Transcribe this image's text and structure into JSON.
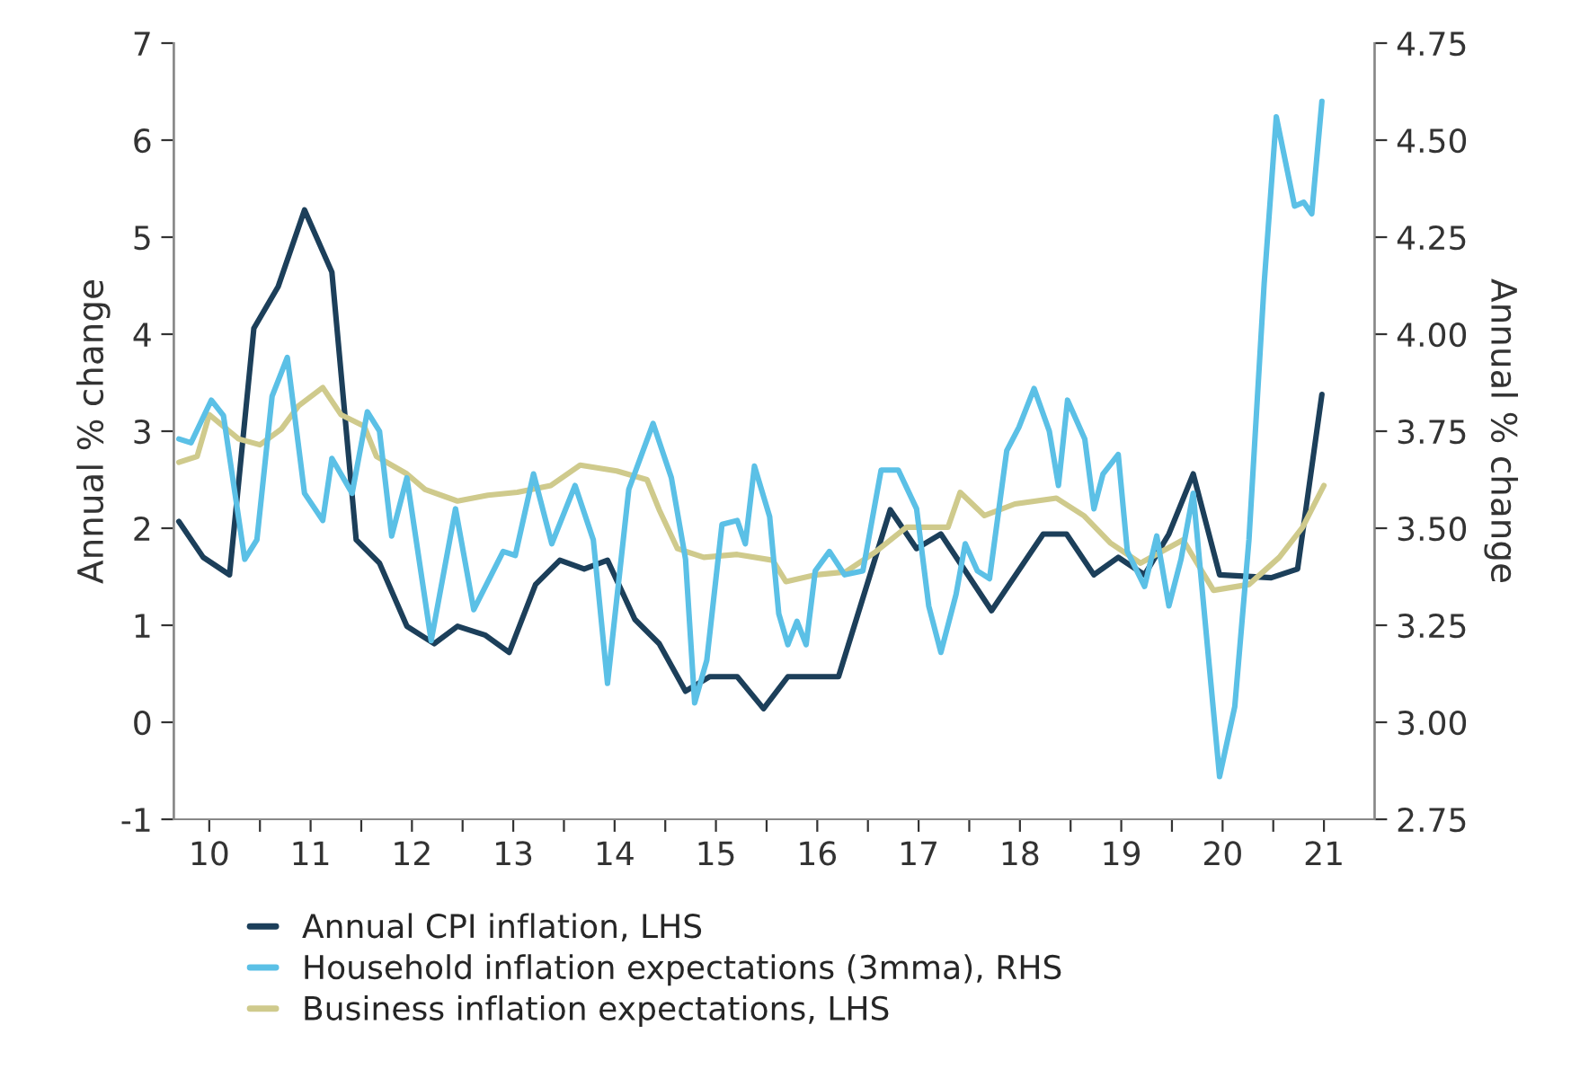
{
  "chart_data": {
    "type": "line",
    "ylabel": "Annual % change",
    "y2label": "Annual % change",
    "xlim": [
      10.15,
      22.0
    ],
    "xticks": [
      {
        "value": 10.5,
        "label": "10"
      },
      {
        "value": 11.5,
        "label": "11"
      },
      {
        "value": 12.5,
        "label": "12"
      },
      {
        "value": 13.5,
        "label": "13"
      },
      {
        "value": 14.5,
        "label": "14"
      },
      {
        "value": 15.5,
        "label": "15"
      },
      {
        "value": 16.5,
        "label": "16"
      },
      {
        "value": 17.5,
        "label": "17"
      },
      {
        "value": 18.5,
        "label": "18"
      },
      {
        "value": 19.5,
        "label": "19"
      },
      {
        "value": 20.5,
        "label": "20"
      },
      {
        "value": 21.5,
        "label": "21"
      },
      {
        "value": 11,
        "label": null
      },
      {
        "value": 12,
        "label": null
      },
      {
        "value": 13,
        "label": null
      },
      {
        "value": 14,
        "label": null
      },
      {
        "value": 15,
        "label": null
      },
      {
        "value": 16,
        "label": null
      },
      {
        "value": 17,
        "label": null
      },
      {
        "value": 18,
        "label": null
      },
      {
        "value": 19,
        "label": null
      },
      {
        "value": 20,
        "label": null
      },
      {
        "value": 21,
        "label": null
      }
    ],
    "ylim": [
      -1,
      7
    ],
    "yticks": [
      -1,
      0,
      1,
      2,
      3,
      4,
      5,
      6,
      7
    ],
    "y2lim": [
      2.75,
      4.75
    ],
    "y2ticks": [
      {
        "value": 2.75,
        "label": "2.75"
      },
      {
        "value": 3.0,
        "label": "3.00"
      },
      {
        "value": 3.25,
        "label": "3.25"
      },
      {
        "value": 3.5,
        "label": "3.50"
      },
      {
        "value": 3.75,
        "label": "3.75"
      },
      {
        "value": 4.0,
        "label": "4.00"
      },
      {
        "value": 4.25,
        "label": "4.25"
      },
      {
        "value": 4.5,
        "label": "4.50"
      },
      {
        "value": 4.75,
        "label": "4.75"
      }
    ],
    "grid": false,
    "legend": "bottom",
    "line_style": "solid",
    "series": [
      {
        "name": "Annual CPI inflation, LHS",
        "color": "#1c3f5a",
        "x": [
          10.2,
          10.44,
          10.7,
          10.94,
          11.18,
          11.44,
          11.71,
          11.95,
          12.18,
          12.45,
          12.72,
          12.95,
          13.22,
          13.46,
          13.72,
          13.96,
          14.2,
          14.43,
          14.7,
          14.94,
          15.2,
          15.44,
          15.71,
          15.97,
          16.21,
          16.71,
          17.22,
          17.48,
          17.72,
          18.22,
          18.73,
          18.96,
          19.23,
          19.47,
          19.73,
          19.97,
          20.21,
          20.47,
          20.98,
          21.24,
          21.48
        ],
        "values": [
          2.07,
          1.7,
          1.52,
          4.06,
          4.49,
          5.28,
          4.64,
          1.88,
          1.64,
          0.99,
          0.81,
          0.99,
          0.9,
          0.72,
          1.42,
          1.67,
          1.58,
          1.67,
          1.06,
          0.81,
          0.32,
          0.47,
          0.47,
          0.14,
          0.47,
          0.47,
          2.19,
          1.79,
          1.94,
          1.15,
          1.94,
          1.94,
          1.52,
          1.7,
          1.52,
          1.94,
          2.56,
          1.52,
          1.49,
          1.58,
          3.38
        ]
      },
      {
        "name": "Household inflation expectations (3mma), RHS",
        "color": "#5bc0e6",
        "axis": "y2",
        "x": [
          10.2,
          10.32,
          10.52,
          10.64,
          10.85,
          10.97,
          11.12,
          11.27,
          11.44,
          11.62,
          11.71,
          11.91,
          12.06,
          12.18,
          12.3,
          12.45,
          12.69,
          12.93,
          13.11,
          13.4,
          13.52,
          13.7,
          13.88,
          14.11,
          14.29,
          14.43,
          14.64,
          14.88,
          15.06,
          15.2,
          15.29,
          15.41,
          15.56,
          15.71,
          15.79,
          15.88,
          16.03,
          16.12,
          16.21,
          16.3,
          16.39,
          16.48,
          16.62,
          16.77,
          16.95,
          17.13,
          17.3,
          17.48,
          17.6,
          17.72,
          17.87,
          17.96,
          18.08,
          18.2,
          18.37,
          18.49,
          18.64,
          18.79,
          18.88,
          18.97,
          19.14,
          19.23,
          19.32,
          19.47,
          19.56,
          19.73,
          19.85,
          19.97,
          20.09,
          20.21,
          20.47,
          20.62,
          20.76,
          20.91,
          21.03,
          21.21,
          21.3,
          21.38,
          21.48
        ],
        "values": [
          3.73,
          3.72,
          3.83,
          3.79,
          3.42,
          3.47,
          3.84,
          3.94,
          3.59,
          3.52,
          3.68,
          3.59,
          3.8,
          3.75,
          3.48,
          3.63,
          3.21,
          3.55,
          3.29,
          3.44,
          3.43,
          3.64,
          3.46,
          3.61,
          3.47,
          3.1,
          3.6,
          3.77,
          3.63,
          3.42,
          3.05,
          3.16,
          3.51,
          3.52,
          3.46,
          3.66,
          3.53,
          3.28,
          3.2,
          3.26,
          3.2,
          3.39,
          3.44,
          3.38,
          3.39,
          3.65,
          3.65,
          3.55,
          3.3,
          3.18,
          3.33,
          3.46,
          3.39,
          3.37,
          3.7,
          3.76,
          3.86,
          3.75,
          3.61,
          3.83,
          3.73,
          3.55,
          3.64,
          3.69,
          3.44,
          3.35,
          3.48,
          3.3,
          3.42,
          3.59,
          2.86,
          3.04,
          3.47,
          4.13,
          4.56,
          4.33,
          4.34,
          4.31,
          4.6
        ]
      },
      {
        "name": "Business inflation expectations, LHS",
        "color": "#cfca8c",
        "x": [
          10.2,
          10.38,
          10.5,
          10.79,
          11.0,
          11.21,
          11.38,
          11.62,
          11.8,
          12.03,
          12.15,
          12.45,
          12.63,
          12.95,
          13.25,
          13.54,
          13.87,
          14.16,
          14.52,
          14.82,
          14.94,
          15.12,
          15.38,
          15.71,
          16.06,
          16.19,
          16.49,
          16.78,
          17.08,
          17.38,
          17.79,
          17.91,
          18.15,
          18.45,
          18.86,
          19.13,
          19.39,
          19.69,
          20.11,
          20.41,
          20.76,
          21.06,
          21.29,
          21.5
        ],
        "values": [
          2.68,
          2.74,
          3.17,
          2.92,
          2.86,
          3.02,
          3.26,
          3.45,
          3.17,
          3.05,
          2.74,
          2.56,
          2.4,
          2.28,
          2.34,
          2.37,
          2.44,
          2.65,
          2.59,
          2.5,
          2.19,
          1.79,
          1.7,
          1.73,
          1.67,
          1.45,
          1.52,
          1.55,
          1.76,
          2.01,
          2.01,
          2.37,
          2.13,
          2.25,
          2.31,
          2.13,
          1.85,
          1.64,
          1.88,
          1.36,
          1.42,
          1.7,
          2.01,
          2.44
        ]
      }
    ]
  }
}
